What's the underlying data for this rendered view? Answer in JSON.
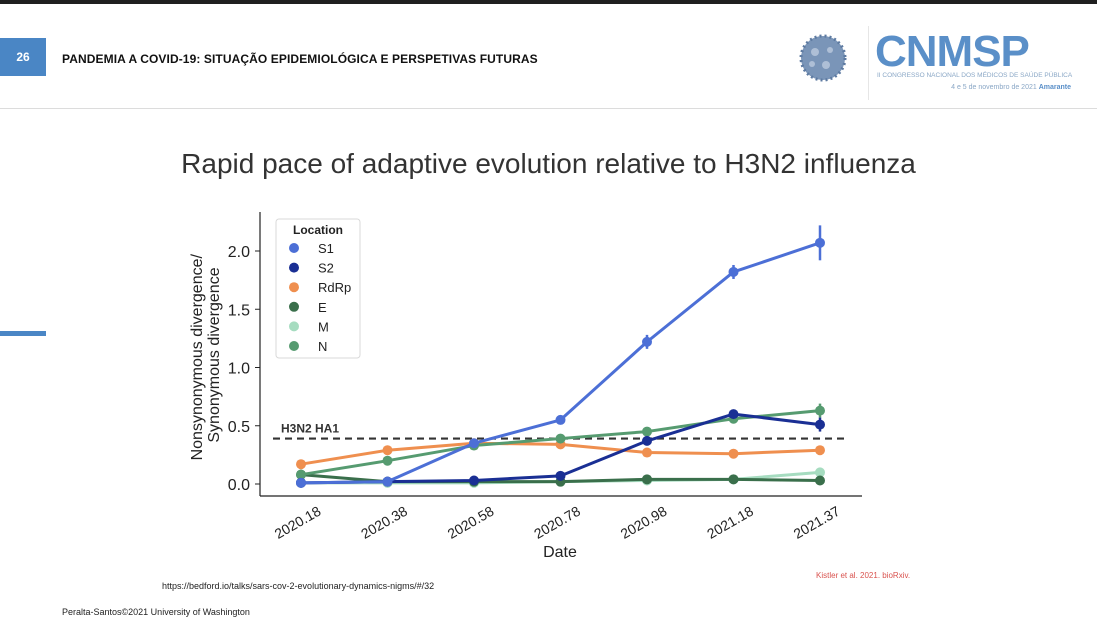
{
  "header": {
    "slide_number": "26",
    "title": "PANDEMIA A COVID-19: SITUAÇÃO EPIDEMIOLÓGICA E PERSPETIVAS FUTURAS",
    "logo_text": "CNMSP",
    "logo_subtitle": "II CONGRESSO NACIONAL DOS MÉDICOS DE SAÚDE PÚBLICA",
    "logo_date": "4 e 5 de novembro de 2021",
    "logo_place": "Amarante"
  },
  "slide_title": "Rapid pace of adaptive evolution relative to H3N2 influenza",
  "source_url": "https://bedford.io/talks/sars-cov-2-evolutionary-dynamics-nigms/#/32",
  "citation": "Kistler et al. 2021. bioRxiv.",
  "footer": "Peralta-Santos©2021 University of Washington",
  "colors": {
    "accent": "#4a86c5",
    "S1": "#4c6fd6",
    "S2": "#1a2f94",
    "RdRp": "#ef8f4f",
    "E": "#3a6f4b",
    "M": "#a6dcc0",
    "N": "#569b70"
  },
  "chart_data": {
    "type": "line",
    "xlabel": "Date",
    "ylabel": [
      "Nonsynonymous divergence/",
      "Synonymous divergence"
    ],
    "x": [
      "2020.18",
      "2020.38",
      "2020.58",
      "2020.78",
      "2020.98",
      "2021.18",
      "2021.37"
    ],
    "ylim": [
      -0.1,
      2.3
    ],
    "yticks": [
      "0.0",
      "0.5",
      "1.0",
      "1.5",
      "2.0"
    ],
    "legend_title": "Location",
    "legend_position": "top-left",
    "reference_line": {
      "label": "H3N2 HA1",
      "value": 0.39
    },
    "series": [
      {
        "name": "S1",
        "values": [
          0.01,
          0.02,
          0.35,
          0.55,
          1.22,
          1.82,
          2.07
        ],
        "errors": [
          0,
          0,
          0,
          0.03,
          0.06,
          0.06,
          0.15
        ]
      },
      {
        "name": "S2",
        "values": [
          0.01,
          0.02,
          0.03,
          0.07,
          0.37,
          0.6,
          0.51
        ],
        "errors": [
          0,
          0,
          0,
          0.02,
          0.03,
          0.03,
          0.06
        ]
      },
      {
        "name": "RdRp",
        "values": [
          0.17,
          0.29,
          0.35,
          0.34,
          0.27,
          0.26,
          0.29
        ],
        "errors": [
          0,
          0,
          0,
          0,
          0,
          0,
          0
        ]
      },
      {
        "name": "E",
        "values": [
          0.08,
          0.02,
          0.02,
          0.02,
          0.04,
          0.04,
          0.03
        ],
        "errors": [
          0,
          0,
          0,
          0,
          0,
          0,
          0
        ]
      },
      {
        "name": "M",
        "values": [
          0.01,
          0.01,
          0.01,
          0.02,
          0.03,
          0.04,
          0.1
        ],
        "errors": [
          0,
          0,
          0,
          0,
          0,
          0,
          0
        ]
      },
      {
        "name": "N",
        "values": [
          0.08,
          0.2,
          0.33,
          0.39,
          0.45,
          0.56,
          0.63
        ],
        "errors": [
          0,
          0,
          0,
          0,
          0,
          0,
          0.06
        ]
      }
    ]
  }
}
